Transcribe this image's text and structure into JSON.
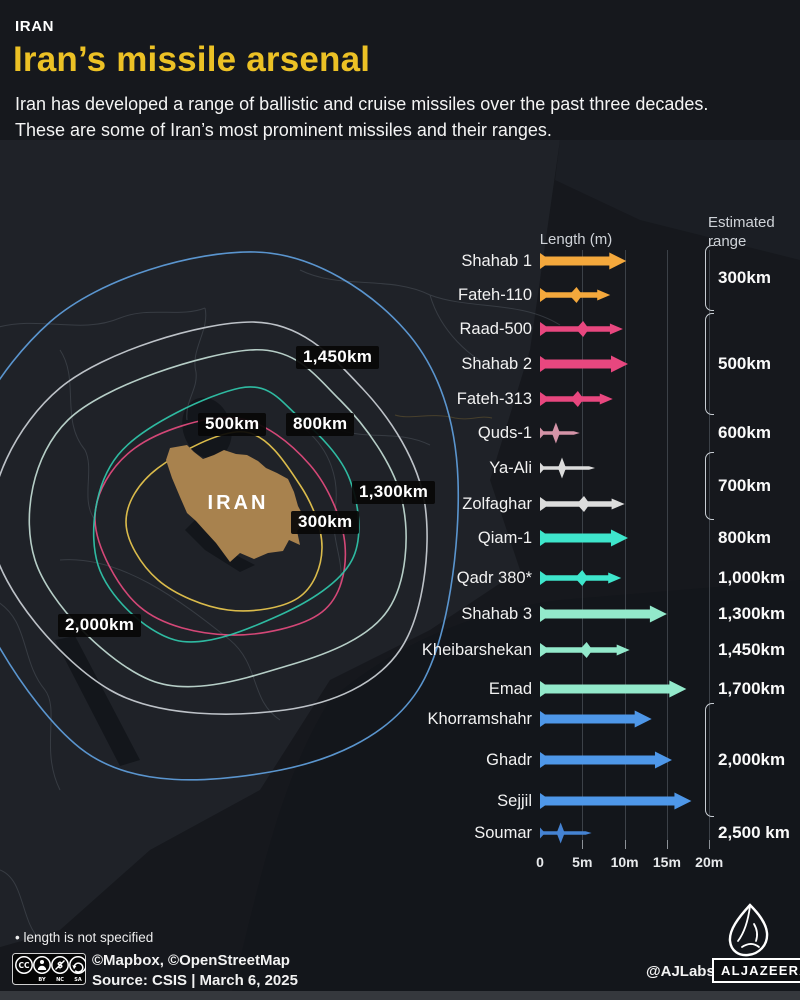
{
  "header": {
    "kicker": "IRAN",
    "title": "Iran’s missile arsenal",
    "description": "Iran has developed a range of ballistic and cruise missiles over the past three decades. These are some of Iran’s most prominent missiles and their ranges."
  },
  "map": {
    "country_label": "IRAN",
    "rings": [
      {
        "range_label": "300km",
        "color": "#E5C44D"
      },
      {
        "range_label": "500km",
        "color": "#DE4A7B"
      },
      {
        "range_label": "800km",
        "color": "#2FC3A8"
      },
      {
        "range_label": "1,300km",
        "color": "#BFD8D0"
      },
      {
        "range_label": "1,450km",
        "color": "#C6CBD1"
      },
      {
        "range_label": "2,000km",
        "color": "#5E9CD8"
      }
    ]
  },
  "chart_data": {
    "type": "bar",
    "title": "Iran’s missile arsenal",
    "xlabel": "Length (m)",
    "right_axis_label": "Estimated range",
    "x_ticks": [
      "0",
      "5m",
      "10m",
      "15m",
      "20m"
    ],
    "x_tick_values": [
      0,
      5,
      10,
      15,
      20
    ],
    "xlim": [
      0,
      20
    ],
    "grid": true,
    "missiles": [
      {
        "name": "Shahab 1",
        "length_m": 10.2,
        "range": "300km",
        "shape": "wide",
        "color": "#F4A83C"
      },
      {
        "name": "Fateh-110",
        "length_m": 8.3,
        "range": "300km",
        "shape": "finned",
        "color": "#F4A83C"
      },
      {
        "name": "Raad-500",
        "length_m": 9.8,
        "range": "500km",
        "shape": "finned",
        "color": "#E8477F"
      },
      {
        "name": "Shahab 2",
        "length_m": 10.4,
        "range": "500km",
        "shape": "wide",
        "color": "#E8477F"
      },
      {
        "name": "Fateh-313",
        "length_m": 8.6,
        "range": "500km",
        "shape": "finned",
        "color": "#E8477F"
      },
      {
        "name": "Quds-1",
        "length_m": 4.7,
        "range": "600km",
        "shape": "cruise",
        "color": "#D594A8"
      },
      {
        "name": "Ya-Ali",
        "length_m": 6.5,
        "range": "700km",
        "shape": "cruise",
        "color": "#DCDCDC"
      },
      {
        "name": "Zolfaghar",
        "length_m": 10.0,
        "range": "700km",
        "shape": "finned",
        "color": "#DCDCDC"
      },
      {
        "name": "Qiam-1",
        "length_m": 10.4,
        "range": "800km",
        "shape": "wide",
        "color": "#3EE6CC"
      },
      {
        "name": "Qadr 380*",
        "length_m": 9.6,
        "range": "1,000km",
        "shape": "finned",
        "color": "#3EE6CC"
      },
      {
        "name": "Shahab 3",
        "length_m": 15.0,
        "range": "1,300km",
        "shape": "wide",
        "color": "#93E9CB"
      },
      {
        "name": "Kheibarshekan",
        "length_m": 10.6,
        "range": "1,450km",
        "shape": "finned",
        "color": "#93E9CB"
      },
      {
        "name": "Emad",
        "length_m": 17.3,
        "range": "1,700km",
        "shape": "wide",
        "color": "#93E9CB"
      },
      {
        "name": "Khorramshahr",
        "length_m": 13.2,
        "range": "2,000km",
        "shape": "wide",
        "color": "#4E97E8"
      },
      {
        "name": "Ghadr",
        "length_m": 15.6,
        "range": "2,000km",
        "shape": "wide",
        "color": "#4E97E8"
      },
      {
        "name": "Sejjil",
        "length_m": 17.9,
        "range": "2,000km",
        "shape": "wide",
        "color": "#4E97E8"
      },
      {
        "name": "Soumar",
        "length_m": 6.1,
        "range": "2,500 km",
        "shape": "cruise",
        "color": "#4583D3"
      }
    ],
    "range_groups": [
      {
        "label": "300km",
        "first": 0,
        "last": 1,
        "bracket": true
      },
      {
        "label": "500km",
        "first": 2,
        "last": 4,
        "bracket": true
      },
      {
        "label": "600km",
        "first": 5,
        "last": 5,
        "bracket": false
      },
      {
        "label": "700km",
        "first": 6,
        "last": 7,
        "bracket": true
      },
      {
        "label": "800km",
        "first": 8,
        "last": 8,
        "bracket": false
      },
      {
        "label": "1,000km",
        "first": 9,
        "last": 9,
        "bracket": false
      },
      {
        "label": "1,300km",
        "first": 10,
        "last": 10,
        "bracket": false
      },
      {
        "label": "1,450km",
        "first": 11,
        "last": 11,
        "bracket": false
      },
      {
        "label": "1,700km",
        "first": 12,
        "last": 12,
        "bracket": false
      },
      {
        "label": "2,000km",
        "first": 13,
        "last": 15,
        "bracket": true
      },
      {
        "label": "2,500 km",
        "first": 16,
        "last": 16,
        "bracket": false
      }
    ]
  },
  "footer": {
    "note": "• length is not specified",
    "license": "CC BY-NC-SA",
    "map_credit": "©Mapbox, ©OpenStreetMap",
    "source_line": "Source: CSIS  |  March 6, 2025",
    "ajlabs": "@AJLabs",
    "brand": "ALJAZEERA"
  }
}
